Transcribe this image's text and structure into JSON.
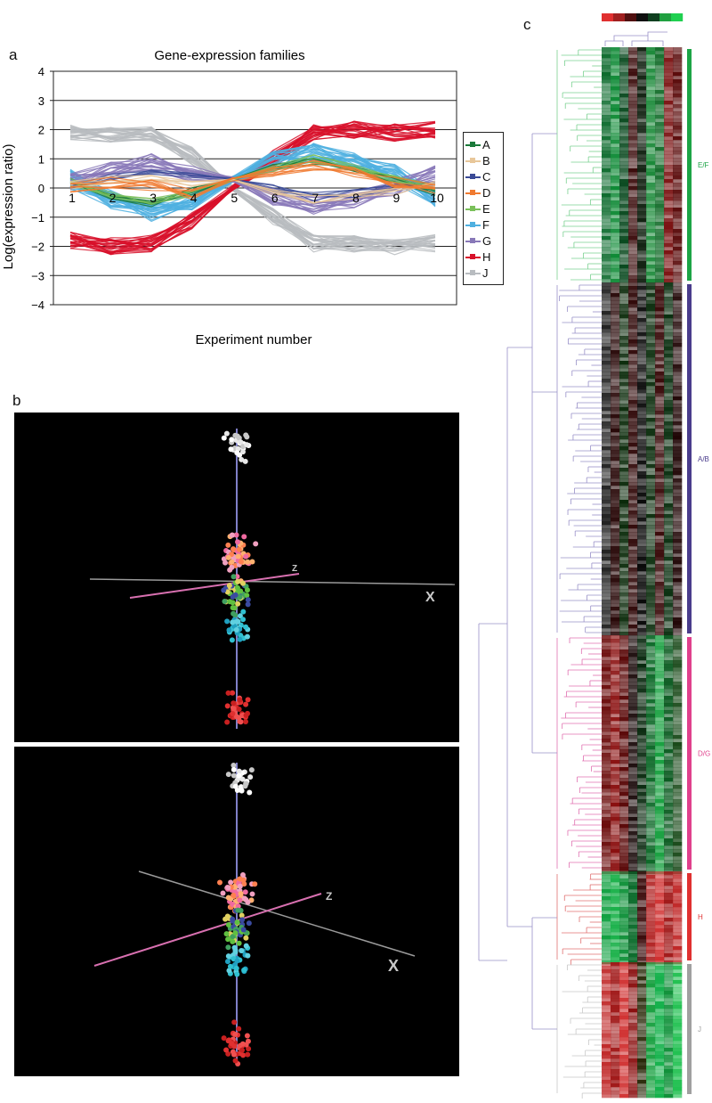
{
  "panel_labels": {
    "a": "a",
    "b": "b",
    "c": "c"
  },
  "chart_data": [
    {
      "type": "line",
      "title": "Gene-expression families",
      "xlabel": "Experiment number",
      "ylabel": "Log(expression ratio)",
      "categories": [
        "1",
        "2",
        "3",
        "4",
        "5",
        "6",
        "7",
        "8",
        "9",
        "10"
      ],
      "ylim": [
        -4,
        4
      ],
      "yticks": [
        "4",
        "3",
        "2",
        "1",
        "0",
        "−1",
        "−2",
        "−3",
        "−4"
      ],
      "grid": true,
      "legend_position": "right",
      "series": [
        {
          "name": "A",
          "color": "#1b7a3a",
          "values": [
            0.2,
            -0.3,
            -0.5,
            -0.1,
            0.3,
            0.7,
            0.9,
            0.6,
            0.3,
            -0.1
          ]
        },
        {
          "name": "B",
          "color": "#e8c79a",
          "values": [
            0.1,
            0.3,
            0.4,
            0.2,
            0.3,
            -0.2,
            -0.4,
            -0.3,
            -0.1,
            0.2
          ]
        },
        {
          "name": "C",
          "color": "#3a4a96",
          "values": [
            0.1,
            0.4,
            0.6,
            0.4,
            0.3,
            0.0,
            -0.3,
            -0.2,
            0.0,
            0.2
          ]
        },
        {
          "name": "D",
          "color": "#f07a30",
          "values": [
            0.0,
            0.2,
            0.1,
            -0.2,
            0.3,
            0.6,
            0.8,
            0.5,
            0.2,
            0.0
          ]
        },
        {
          "name": "E",
          "color": "#7ac05a",
          "values": [
            0.2,
            -0.2,
            -0.5,
            -0.2,
            0.3,
            0.7,
            1.0,
            0.7,
            0.3,
            0.0
          ]
        },
        {
          "name": "F",
          "color": "#4fb0e0",
          "values": [
            0.3,
            -0.4,
            -0.8,
            -0.4,
            0.3,
            0.9,
            1.2,
            0.9,
            0.5,
            -0.3
          ]
        },
        {
          "name": "G",
          "color": "#8878b8",
          "values": [
            0.2,
            0.6,
            0.9,
            0.5,
            0.3,
            -0.3,
            -0.6,
            -0.4,
            0.0,
            0.5
          ]
        },
        {
          "name": "H",
          "color": "#d8102a",
          "values": [
            -1.8,
            -2.0,
            -1.9,
            -1.1,
            0.0,
            1.0,
            1.9,
            2.0,
            1.9,
            2.0
          ]
        },
        {
          "name": "J",
          "color": "#b8bcc0",
          "values": [
            1.9,
            1.8,
            1.9,
            1.1,
            0.0,
            -1.0,
            -1.9,
            -1.9,
            -2.0,
            -1.9
          ]
        }
      ]
    },
    {
      "type": "scatter",
      "axis_labels": [
        "X",
        "Z",
        "X",
        "Z"
      ]
    },
    {
      "type": "heatmap",
      "clusters": [
        {
          "label": "E/F",
          "color": "#1da446"
        },
        {
          "label": "A/B",
          "color": "#4a3c8c"
        },
        {
          "label": "D/G",
          "color": "#e0408c"
        },
        {
          "label": "H",
          "color": "#e03030"
        },
        {
          "label": "J",
          "color": "#a0a0a0"
        }
      ]
    }
  ]
}
